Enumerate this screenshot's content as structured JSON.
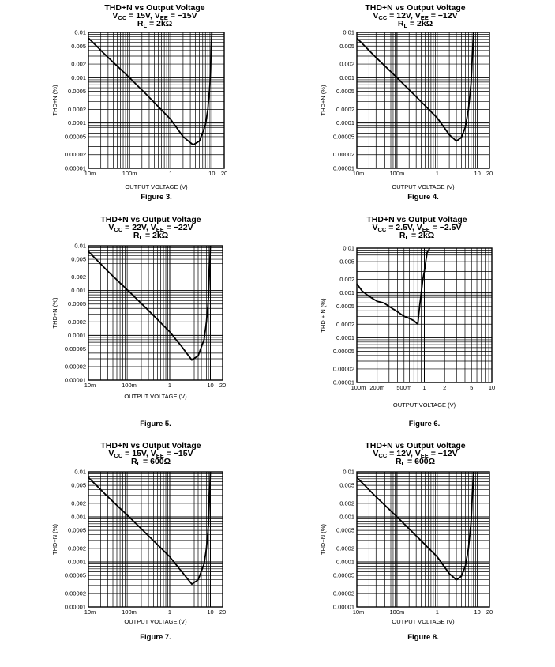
{
  "chart_data": [
    {
      "type": "line",
      "figure_label": "Figure 3.",
      "title_lines": [
        "THD+N vs Output Voltage",
        "VCC = 15V, VEE = −15V",
        "RL = 2kΩ"
      ],
      "xlabel": "OUTPUT VOLTAGE (V)",
      "ylabel": "THD+N (%)",
      "x_scale": "log",
      "y_scale": "log",
      "xlim": [
        0.01,
        20
      ],
      "ylim": [
        1e-05,
        0.01
      ],
      "x_ticks": [
        {
          "value": 0.01,
          "label": "10m"
        },
        {
          "value": 0.1,
          "label": "100m"
        },
        {
          "value": 1,
          "label": "1"
        },
        {
          "value": 10,
          "label": "10"
        },
        {
          "value": 20,
          "label": "20"
        }
      ],
      "y_ticks": [
        {
          "value": 0.01,
          "label": "0.01"
        },
        {
          "value": 0.005,
          "label": "0.005"
        },
        {
          "value": 0.002,
          "label": "0.002"
        },
        {
          "value": 0.001,
          "label": "0.001"
        },
        {
          "value": 0.0005,
          "label": "0.0005"
        },
        {
          "value": 0.0002,
          "label": "0.0002"
        },
        {
          "value": 0.0001,
          "label": "0.0001"
        },
        {
          "value": 5e-05,
          "label": "0.00005"
        },
        {
          "value": 2e-05,
          "label": "0.00002"
        },
        {
          "value": 1e-05,
          "label": "0.00001"
        }
      ],
      "series": [
        {
          "name": "THD+N",
          "x": [
            0.01,
            0.03,
            0.1,
            0.3,
            1,
            2,
            3.5,
            5,
            7,
            8,
            9,
            10
          ],
          "y": [
            0.0075,
            0.0028,
            0.001,
            0.00037,
            0.00012,
            5e-05,
            3.3e-05,
            4e-05,
            9e-05,
            0.0002,
            0.0007,
            0.01
          ]
        }
      ]
    },
    {
      "type": "line",
      "figure_label": "Figure 4.",
      "title_lines": [
        "THD+N vs Output Voltage",
        "VCC = 12V, VEE = −12V",
        "RL = 2kΩ"
      ],
      "xlabel": "OUTPUT VOLTAGE (V)",
      "ylabel": "THD+N (%)",
      "x_scale": "log",
      "y_scale": "log",
      "xlim": [
        0.01,
        20
      ],
      "ylim": [
        1e-05,
        0.01
      ],
      "x_ticks": [
        {
          "value": 0.01,
          "label": "10m"
        },
        {
          "value": 0.1,
          "label": "100m"
        },
        {
          "value": 1,
          "label": "1"
        },
        {
          "value": 10,
          "label": "10"
        },
        {
          "value": 20,
          "label": "20"
        }
      ],
      "y_ticks": [
        {
          "value": 0.01,
          "label": "0.01"
        },
        {
          "value": 0.005,
          "label": "0.005"
        },
        {
          "value": 0.002,
          "label": "0.002"
        },
        {
          "value": 0.001,
          "label": "0.001"
        },
        {
          "value": 0.0005,
          "label": "0.0005"
        },
        {
          "value": 0.0002,
          "label": "0.0002"
        },
        {
          "value": 0.0001,
          "label": "0.0001"
        },
        {
          "value": 5e-05,
          "label": "0.00005"
        },
        {
          "value": 2e-05,
          "label": "0.00002"
        },
        {
          "value": 1e-05,
          "label": "0.00001"
        }
      ],
      "series": [
        {
          "name": "THD+N",
          "x": [
            0.01,
            0.03,
            0.1,
            0.3,
            1,
            2,
            3,
            4,
            5,
            6,
            7,
            7.5,
            8
          ],
          "y": [
            0.0075,
            0.0028,
            0.001,
            0.00038,
            0.00013,
            5.5e-05,
            4e-05,
            4.8e-05,
            8e-05,
            0.0002,
            0.0008,
            0.003,
            0.01
          ]
        }
      ]
    },
    {
      "type": "line",
      "figure_label": "Figure 5.",
      "title_lines": [
        "THD+N vs Output Voltage",
        "VCC = 22V, VEE = −22V",
        "RL = 2kΩ"
      ],
      "xlabel": "OUTPUT VOLTAGE (V)",
      "ylabel": "THD+N (%)",
      "x_scale": "log",
      "y_scale": "log",
      "xlim": [
        0.01,
        20
      ],
      "ylim": [
        1e-05,
        0.01
      ],
      "x_ticks": [
        {
          "value": 0.01,
          "label": "10m"
        },
        {
          "value": 0.1,
          "label": "100m"
        },
        {
          "value": 1,
          "label": "1"
        },
        {
          "value": 10,
          "label": "10"
        },
        {
          "value": 20,
          "label": "20"
        }
      ],
      "y_ticks": [
        {
          "value": 0.01,
          "label": "0.01"
        },
        {
          "value": 0.005,
          "label": "0.005"
        },
        {
          "value": 0.002,
          "label": "0.002"
        },
        {
          "value": 0.001,
          "label": "0.001"
        },
        {
          "value": 0.0005,
          "label": "0.0005"
        },
        {
          "value": 0.0002,
          "label": "0.0002"
        },
        {
          "value": 0.0001,
          "label": "0.0001"
        },
        {
          "value": 5e-05,
          "label": "0.00005"
        },
        {
          "value": 2e-05,
          "label": "0.00002"
        },
        {
          "value": 1e-05,
          "label": "0.00001"
        }
      ],
      "series": [
        {
          "name": "THD+N",
          "x": [
            0.01,
            0.03,
            0.1,
            0.3,
            1,
            2,
            3.5,
            5,
            7,
            8,
            9,
            10
          ],
          "y": [
            0.0075,
            0.0027,
            0.00095,
            0.00036,
            0.00012,
            5.5e-05,
            2.8e-05,
            3.5e-05,
            8e-05,
            0.0002,
            0.0007,
            0.01
          ]
        }
      ]
    },
    {
      "type": "line",
      "figure_label": "Figure 6.",
      "title_lines": [
        "THD+N vs Output Voltage",
        "VCC = 2.5V, VEE = −2.5V",
        "RL = 2kΩ"
      ],
      "xlabel": "OUTPUT VOLTAGE (V)",
      "ylabel": "THD + N (%)",
      "x_scale": "log",
      "y_scale": "log",
      "xlim": [
        0.1,
        10
      ],
      "ylim": [
        1e-05,
        0.01
      ],
      "x_ticks": [
        {
          "value": 0.1,
          "label": "100m"
        },
        {
          "value": 0.2,
          "label": "200m"
        },
        {
          "value": 0.5,
          "label": "500m"
        },
        {
          "value": 1,
          "label": "1"
        },
        {
          "value": 2,
          "label": "2"
        },
        {
          "value": 5,
          "label": "5"
        },
        {
          "value": 10,
          "label": "10"
        }
      ],
      "y_ticks": [
        {
          "value": 0.01,
          "label": "0.01"
        },
        {
          "value": 0.005,
          "label": "0.005"
        },
        {
          "value": 0.002,
          "label": "0.002"
        },
        {
          "value": 0.001,
          "label": "0.001"
        },
        {
          "value": 0.0005,
          "label": "0.0005"
        },
        {
          "value": 0.0002,
          "label": "0.0002"
        },
        {
          "value": 0.0001,
          "label": "0.0001"
        },
        {
          "value": 5e-05,
          "label": "0.00005"
        },
        {
          "value": 2e-05,
          "label": "0.00002"
        },
        {
          "value": 1e-05,
          "label": "0.00001"
        }
      ],
      "series": [
        {
          "name": "THD+N",
          "x": [
            0.1,
            0.12,
            0.15,
            0.2,
            0.25,
            0.3,
            0.4,
            0.5,
            0.6,
            0.7,
            0.8,
            0.85,
            0.9,
            0.95,
            1.0,
            1.05,
            1.1,
            1.2
          ],
          "y": [
            0.0016,
            0.0011,
            0.00085,
            0.00065,
            0.0006,
            0.0005,
            0.00038,
            0.0003,
            0.00027,
            0.00024,
            0.0002,
            0.0005,
            0.001,
            0.002,
            0.003,
            0.005,
            0.008,
            0.01
          ]
        }
      ]
    },
    {
      "type": "line",
      "figure_label": "Figure 7.",
      "title_lines": [
        "THD+N vs Output Voltage",
        "VCC = 15V, VEE = −15V",
        "RL = 600Ω"
      ],
      "xlabel": "OUTPUT VOLTAGE (V)",
      "ylabel": "THD+N (%)",
      "x_scale": "log",
      "y_scale": "log",
      "xlim": [
        0.01,
        20
      ],
      "ylim": [
        1e-05,
        0.01
      ],
      "x_ticks": [
        {
          "value": 0.01,
          "label": "10m"
        },
        {
          "value": 0.1,
          "label": "100m"
        },
        {
          "value": 1,
          "label": "1"
        },
        {
          "value": 10,
          "label": "10"
        },
        {
          "value": 20,
          "label": "20"
        }
      ],
      "y_ticks": [
        {
          "value": 0.01,
          "label": "0.01"
        },
        {
          "value": 0.005,
          "label": "0.005"
        },
        {
          "value": 0.002,
          "label": "0.002"
        },
        {
          "value": 0.001,
          "label": "0.001"
        },
        {
          "value": 0.0005,
          "label": "0.0005"
        },
        {
          "value": 0.0002,
          "label": "0.0002"
        },
        {
          "value": 0.0001,
          "label": "0.0001"
        },
        {
          "value": 5e-05,
          "label": "0.00005"
        },
        {
          "value": 2e-05,
          "label": "0.00002"
        },
        {
          "value": 1e-05,
          "label": "0.00001"
        }
      ],
      "series": [
        {
          "name": "THD+N",
          "x": [
            0.01,
            0.03,
            0.1,
            0.3,
            1,
            2,
            3.5,
            5,
            7,
            8,
            9,
            10
          ],
          "y": [
            0.0075,
            0.0028,
            0.001,
            0.00038,
            0.00013,
            6e-05,
            3.2e-05,
            4e-05,
            9e-05,
            0.0002,
            0.0007,
            0.01
          ]
        }
      ]
    },
    {
      "type": "line",
      "figure_label": "Figure 8.",
      "title_lines": [
        "THD+N vs Output Voltage",
        "VCC = 12V, VEE = −12V",
        "RL = 600Ω"
      ],
      "xlabel": "OUTPUT VOLTAGE (V)",
      "ylabel": "THD+N (%)",
      "x_scale": "log",
      "y_scale": "log",
      "xlim": [
        0.01,
        20
      ],
      "ylim": [
        1e-05,
        0.01
      ],
      "x_ticks": [
        {
          "value": 0.01,
          "label": "10m"
        },
        {
          "value": 0.1,
          "label": "100m"
        },
        {
          "value": 1,
          "label": "1"
        },
        {
          "value": 10,
          "label": "10"
        },
        {
          "value": 20,
          "label": "20"
        }
      ],
      "y_ticks": [
        {
          "value": 0.01,
          "label": "0.01"
        },
        {
          "value": 0.005,
          "label": "0.005"
        },
        {
          "value": 0.002,
          "label": "0.002"
        },
        {
          "value": 0.001,
          "label": "0.001"
        },
        {
          "value": 0.0005,
          "label": "0.0005"
        },
        {
          "value": 0.0002,
          "label": "0.0002"
        },
        {
          "value": 0.0001,
          "label": "0.0001"
        },
        {
          "value": 5e-05,
          "label": "0.00005"
        },
        {
          "value": 2e-05,
          "label": "0.00002"
        },
        {
          "value": 1e-05,
          "label": "0.00001"
        }
      ],
      "series": [
        {
          "name": "THD+N",
          "x": [
            0.01,
            0.03,
            0.1,
            0.3,
            1,
            2,
            3,
            4,
            5,
            6,
            7,
            7.5,
            8
          ],
          "y": [
            0.0075,
            0.0028,
            0.001,
            0.00038,
            0.00013,
            5.5e-05,
            4e-05,
            4.8e-05,
            8e-05,
            0.0002,
            0.0008,
            0.003,
            0.01
          ]
        }
      ]
    }
  ]
}
